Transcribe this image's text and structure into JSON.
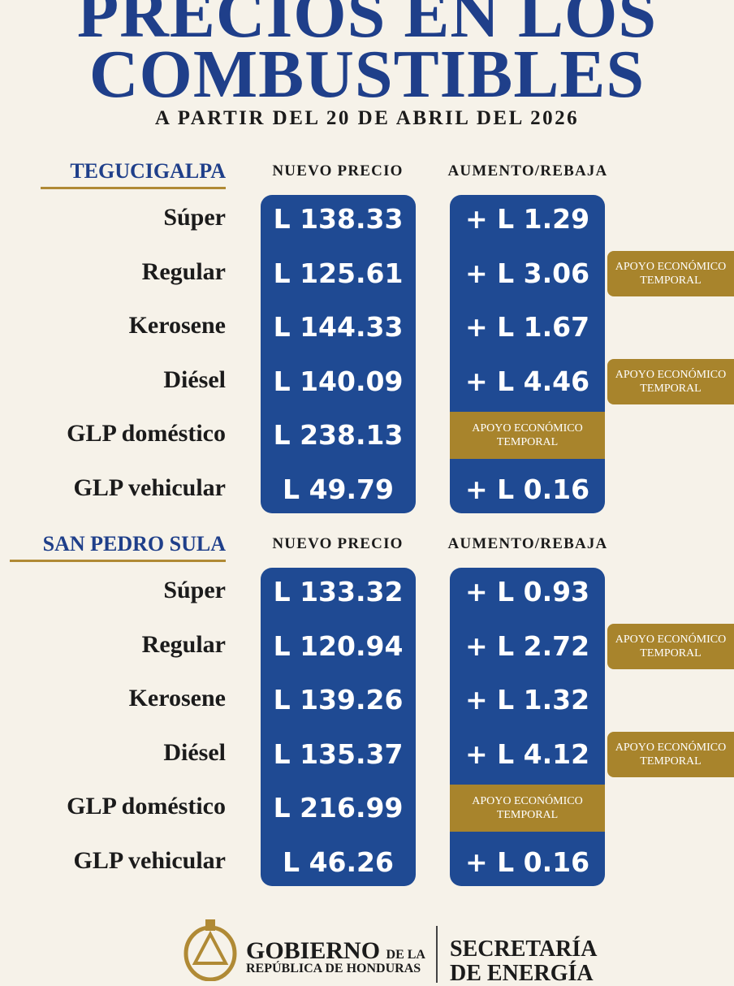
{
  "header": {
    "title": [
      "PRECIOS EN LOS",
      "COMBUSTIBLES"
    ],
    "subtitle": "A PARTIR DEL 20 DE ABRIL DEL 2026"
  },
  "sections": [
    {
      "city": "TEGUCIGALPA",
      "price_header": "NUEVO PRECIO",
      "change_header": "AUMENTO/REBAJA",
      "rows": [
        {
          "fuel": "Súper",
          "price": "L 138.33",
          "change": "+ L 1.29"
        },
        {
          "fuel": "Regular",
          "price": "L 125.61",
          "change": "+ L 3.06",
          "note": "APOYO ECONÓMICO TEMPORAL"
        },
        {
          "fuel": "Kerosene",
          "price": "L 144.33",
          "change": "+ L 1.67"
        },
        {
          "fuel": "Diésel",
          "price": "L 140.09",
          "change": "+ L 4.46",
          "note": "APOYO ECONÓMICO TEMPORAL"
        },
        {
          "fuel": "GLP doméstico",
          "price": "L 238.13",
          "note": "APOYO ECONÓMICO TEMPORAL"
        },
        {
          "fuel": "GLP vehicular",
          "price": "L 49.79",
          "change": "+ L 0.16"
        }
      ]
    },
    {
      "city": "SAN PEDRO SULA",
      "price_header": "NUEVO PRECIO",
      "change_header": "AUMENTO/REBAJA",
      "rows": [
        {
          "fuel": "Súper",
          "price": "L 133.32",
          "change": "+ L 0.93"
        },
        {
          "fuel": "Regular",
          "price": "L 120.94",
          "change": "+ L 2.72",
          "note": "APOYO ECONÓMICO TEMPORAL"
        },
        {
          "fuel": "Kerosene",
          "price": "L 139.26",
          "change": "+ L 1.32"
        },
        {
          "fuel": "Diésel",
          "price": "L 135.37",
          "change": "+ L 4.12",
          "note": "APOYO ECONÓMICO TEMPORAL"
        },
        {
          "fuel": "GLP doméstico",
          "price": "L 216.99",
          "note": "APOYO ECONÓMICO TEMPORAL"
        },
        {
          "fuel": "GLP vehicular",
          "price": "L 46.26",
          "change": "+ L 0.16"
        }
      ]
    }
  ],
  "footer": {
    "gov": "GOBIERNO",
    "gov_small": "DE LA",
    "republic": "REPÚBLICA DE HONDURAS",
    "secretary": [
      "SECRETARÍA",
      "DE ENERGÍA"
    ]
  }
}
